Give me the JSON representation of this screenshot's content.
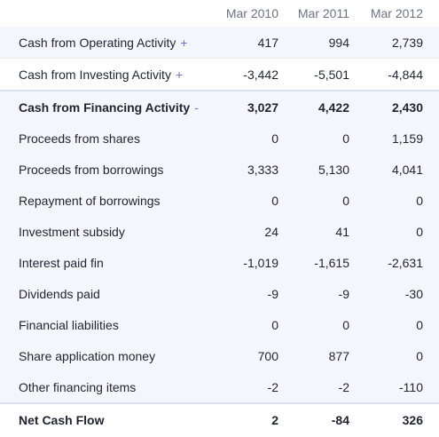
{
  "columns": [
    "Mar 2010",
    "Mar 2011",
    "Mar 2012"
  ],
  "rows": [
    {
      "label": "Cash from Operating Activity",
      "toggle": "+",
      "values": [
        "417",
        "994",
        "2,739"
      ]
    },
    {
      "label": "Cash from Investing Activity",
      "toggle": "+",
      "values": [
        "-3,442",
        "-5,501",
        "-4,844"
      ]
    },
    {
      "label": "Cash from Financing Activity",
      "toggle": "-",
      "values": [
        "3,027",
        "4,422",
        "2,430"
      ]
    },
    {
      "label": "Proceeds from shares",
      "values": [
        "0",
        "0",
        "1,159"
      ]
    },
    {
      "label": "Proceeds from borrowings",
      "values": [
        "3,333",
        "5,130",
        "4,041"
      ]
    },
    {
      "label": "Repayment of borrowings",
      "values": [
        "0",
        "0",
        "0"
      ]
    },
    {
      "label": "Investment subsidy",
      "values": [
        "24",
        "41",
        "0"
      ]
    },
    {
      "label": "Interest paid fin",
      "values": [
        "-1,019",
        "-1,615",
        "-2,631"
      ]
    },
    {
      "label": "Dividends paid",
      "values": [
        "-9",
        "-9",
        "-30"
      ]
    },
    {
      "label": "Financial liabilities",
      "values": [
        "0",
        "0",
        "0"
      ]
    },
    {
      "label": "Share application money",
      "values": [
        "700",
        "877",
        "0"
      ]
    },
    {
      "label": "Other financing items",
      "values": [
        "-2",
        "-2",
        "-110"
      ]
    },
    {
      "label": "Net Cash Flow",
      "values": [
        "2",
        "-84",
        "326"
      ]
    }
  ],
  "colors": {
    "accent": "#6e79d6",
    "alt_row": "#f5f6fb",
    "header_text": "#6b7385"
  }
}
